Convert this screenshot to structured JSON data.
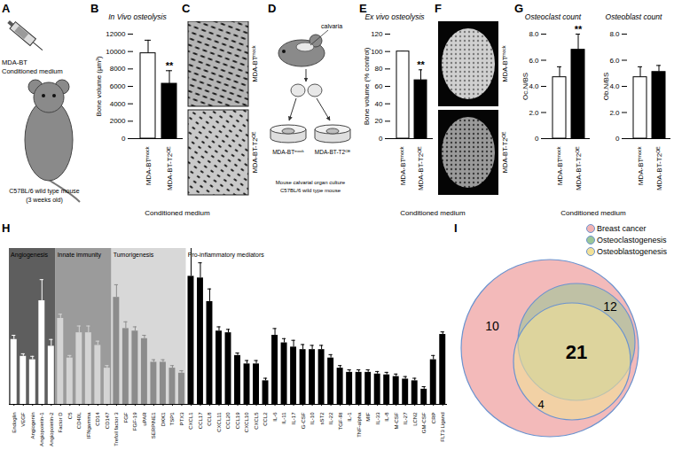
{
  "letters": [
    "A",
    "B",
    "C",
    "D",
    "E",
    "F",
    "G",
    "H",
    "I"
  ],
  "panel_a": {
    "top_lines": [
      "MDA-BT",
      "Conditioned medium"
    ],
    "bottom_lines": [
      "C57BL/6 wild type mouse",
      "(3 weeks old)"
    ]
  },
  "conditioned_medium": "Conditioned medium",
  "panel_c": {
    "labels": [
      "MDA-BTᵐᵒᶜᵏ",
      "MDA-BT-T2ᴼᴱ"
    ]
  },
  "panel_d": {
    "calvaria": "calvaria",
    "dishes": [
      "MDA-BTᵐᵒᶜᵏ",
      "MDA-BT-T2ᴼᴱ"
    ],
    "caption": [
      "Mouse calvarial organ culture",
      "C57BL/6 wild type mouse"
    ]
  },
  "panel_f": {
    "labels": [
      "MDA-BTᵐᵒᶜᵏ",
      "MDA-BT-T2ᴼᴱ"
    ]
  },
  "chart_data": [
    {
      "type": "bar",
      "title": "In Vivo osteolysis",
      "y_label": "Bone volume (µm³)",
      "categories": [
        "MDA-BTᵐᵒᶜᵏ",
        "MDA-BT-T2ᴼᴱ"
      ],
      "values": [
        9800,
        6300
      ],
      "errors": [
        1500,
        1500
      ],
      "colors": [
        "#ffffff",
        "#000000"
      ],
      "ylim": [
        0,
        12000
      ],
      "yticks": [
        0,
        2000,
        4000,
        6000,
        8000,
        10000,
        12000
      ],
      "annotations": [
        {
          "category": "MDA-BT-T2ᴼᴱ",
          "text": "**"
        }
      ]
    },
    {
      "type": "bar",
      "title": "Ex vivo osteolysis",
      "y_label": "Bone volume (% control)",
      "categories": [
        "MDA-BTᵐᵒᶜᵏ",
        "MDA-BT-T2ᴼᴱ"
      ],
      "values": [
        100,
        67
      ],
      "errors": [
        0,
        12
      ],
      "colors": [
        "#ffffff",
        "#000000"
      ],
      "ylim": [
        0,
        120
      ],
      "yticks": [
        0,
        20,
        40,
        60,
        80,
        100,
        120
      ],
      "annotations": [
        {
          "category": "MDA-BT-T2ᴼᴱ",
          "text": "**"
        }
      ]
    },
    {
      "type": "bar",
      "title": "Osteoclast count",
      "y_label": "Oc.N/BS",
      "categories": [
        "MDA-BTᵐᵒᶜᵏ",
        "MDA-BT-T2ᴼᴱ"
      ],
      "values": [
        4.7,
        6.8
      ],
      "errors": [
        0.8,
        1.2
      ],
      "colors": [
        "#ffffff",
        "#000000"
      ],
      "ylim": [
        0,
        8
      ],
      "yticks": [
        0,
        {
          "value": 2,
          "label": "2.0"
        },
        {
          "value": 4,
          "label": "4.0"
        },
        {
          "value": 6,
          "label": "6.0"
        },
        {
          "value": 8,
          "label": "8.0"
        }
      ],
      "annotations": [
        {
          "category": "MDA-BT-T2ᴼᴱ",
          "text": "**"
        }
      ]
    },
    {
      "type": "bar",
      "title": "Osteoblast count",
      "y_label": "Ob.N/BS",
      "categories": [
        "MDA-BTᵐᵒᶜᵏ",
        "MDA-BT-T2ᴼᴱ"
      ],
      "values": [
        4.7,
        5.1
      ],
      "errors": [
        0.8,
        0.5
      ],
      "colors": [
        "#ffffff",
        "#000000"
      ],
      "ylim": [
        0,
        8
      ],
      "yticks": [
        0,
        {
          "value": 2,
          "label": "2.0"
        },
        {
          "value": 4,
          "label": "4.0"
        },
        {
          "value": 6,
          "label": "6.0"
        },
        {
          "value": 8,
          "label": "8.0"
        }
      ]
    },
    {
      "type": "bar",
      "tick_labels": "x",
      "ylim": [
        0,
        185
      ],
      "series": [
        {
          "name": "Angiogenesis",
          "color": "#ffffff",
          "categories": [
            "Endoglin",
            "VEGF",
            "Angiogenin",
            "Angiopoietin-1",
            "Angiopoietin-2"
          ],
          "values": [
            77,
            57,
            53,
            123,
            69
          ],
          "errors": [
            5,
            3,
            4,
            25,
            8
          ]
        },
        {
          "name": "Innate immunity",
          "color": "#d4d4d4",
          "categories": [
            "Factor D",
            "C5",
            "CD40L",
            "IFNgamma",
            "CD14",
            "CD147"
          ],
          "values": [
            102,
            55,
            85,
            85,
            70,
            43
          ],
          "errors": [
            5,
            3,
            8,
            8,
            5,
            3
          ]
        },
        {
          "name": "Tumorigenesis",
          "color": "#8c8c8c",
          "categories": [
            "Trefoil factor 3",
            "FGF",
            "FGF-19",
            "uPAR",
            "SERPINE1",
            "DKK1",
            "TSP1",
            "PTX3"
          ],
          "values": [
            127,
            90,
            87,
            78,
            50,
            50,
            43,
            37
          ],
          "errors": [
            15,
            8,
            5,
            4,
            3,
            3,
            3,
            3
          ]
        },
        {
          "name": "Pro-inflammatory mediators",
          "color": "#000000",
          "categories": [
            "CXCL1",
            "CCL17",
            "CCL8",
            "CXCL11",
            "CCL20",
            "CCL19",
            "CXCL10",
            "CXCL5",
            "CCL2",
            "IL-6",
            "IL-11",
            "IL-17",
            "G-CSF",
            "IL-10",
            "sST2",
            "IL-22",
            "TGF-RI",
            "IL-1",
            "TNF-alpha",
            "MIF",
            "IL-33",
            "IL-8",
            "M-CSF",
            "IL-27",
            "LCN2",
            "GM-CSF",
            "CRP",
            "FLT3 Ligand"
          ],
          "values": [
            152,
            150,
            122,
            87,
            85,
            58,
            48,
            48,
            28,
            82,
            73,
            68,
            65,
            65,
            65,
            55,
            43,
            38,
            38,
            38,
            36,
            35,
            33,
            30,
            28,
            18,
            53,
            83
          ],
          "errors": [
            35,
            18,
            15,
            5,
            4,
            3,
            4,
            4,
            3,
            8,
            5,
            8,
            6,
            5,
            5,
            4,
            3,
            3,
            3,
            3,
            3,
            3,
            3,
            3,
            3,
            3,
            5,
            3
          ]
        }
      ]
    }
  ],
  "venn": {
    "sets": [
      {
        "name": "Breast cancer",
        "color": "#f2b3b3"
      },
      {
        "name": "Osteoclastogenesis",
        "color": "#9cc798"
      },
      {
        "name": "Osteoblastogenesis",
        "color": "#f2e197"
      }
    ],
    "regions": [
      {
        "sets": [
          "Breast cancer"
        ],
        "count": 10
      },
      {
        "sets": [
          "Breast cancer",
          "Osteoclastogenesis"
        ],
        "count": 12
      },
      {
        "sets": [
          "Breast cancer",
          "Osteoclastogenesis",
          "Osteoblastogenesis"
        ],
        "count": 21
      },
      {
        "sets": [
          "Breast cancer",
          "Osteoblastogenesis"
        ],
        "count": 4
      }
    ]
  }
}
